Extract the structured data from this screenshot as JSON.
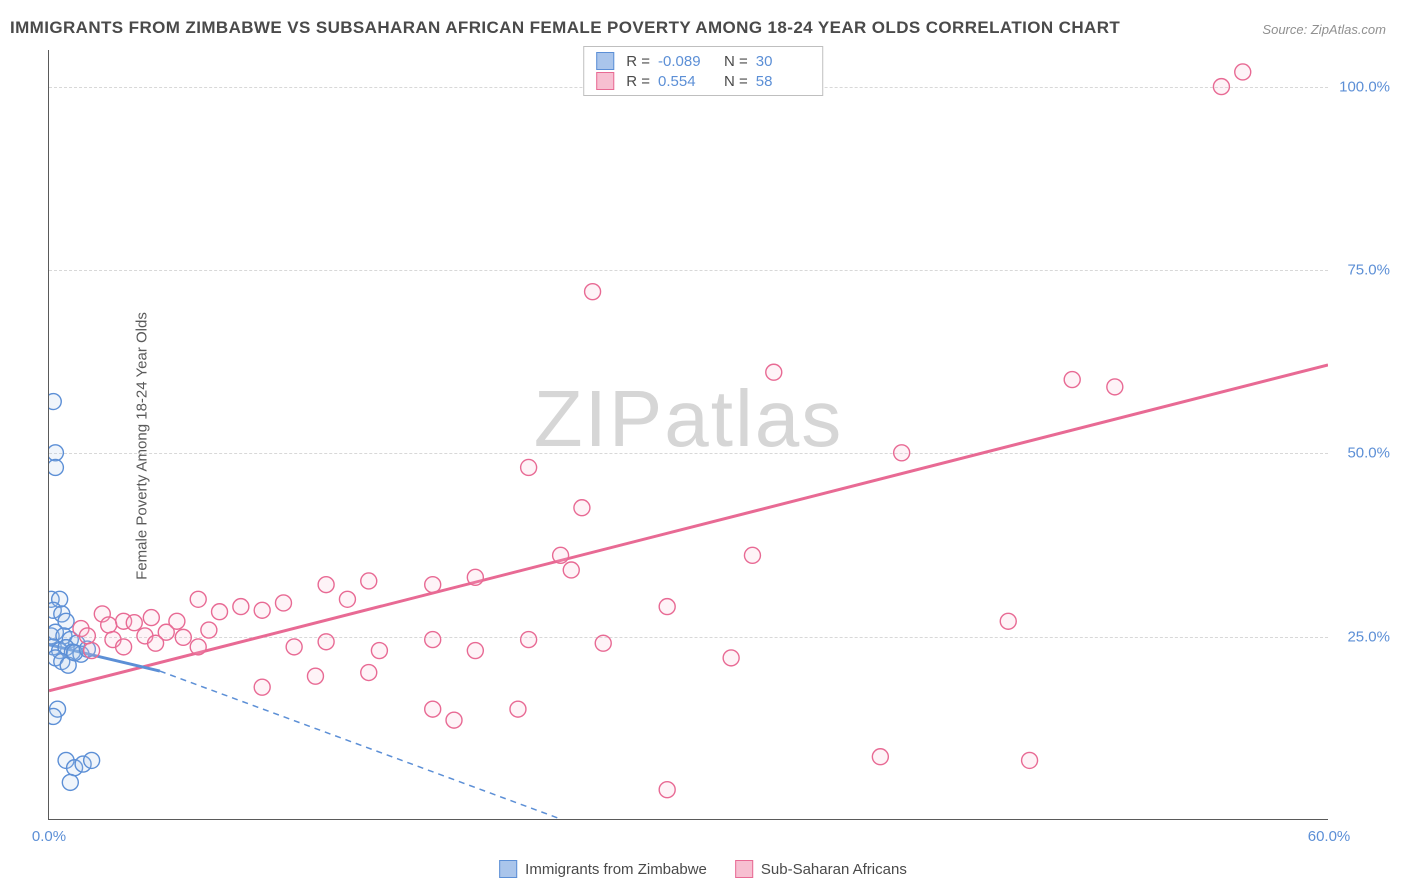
{
  "title": "IMMIGRANTS FROM ZIMBABWE VS SUBSAHARAN AFRICAN FEMALE POVERTY AMONG 18-24 YEAR OLDS CORRELATION CHART",
  "source_label": "Source:",
  "source_value": "ZipAtlas.com",
  "y_axis_label": "Female Poverty Among 18-24 Year Olds",
  "watermark_bold": "ZIP",
  "watermark_light": "atlas",
  "chart": {
    "type": "scatter",
    "xlim": [
      0,
      60
    ],
    "ylim": [
      0,
      105
    ],
    "x_ticks": [
      {
        "v": 0,
        "label": "0.0%"
      },
      {
        "v": 60,
        "label": "60.0%"
      }
    ],
    "y_ticks": [
      {
        "v": 25,
        "label": "25.0%"
      },
      {
        "v": 50,
        "label": "50.0%"
      },
      {
        "v": 75,
        "label": "75.0%"
      },
      {
        "v": 100,
        "label": "100.0%"
      }
    ],
    "grid_color": "#d8d8d8",
    "background_color": "#ffffff",
    "axis_color": "#5a5a5a",
    "tick_label_color": "#5c8fd6",
    "marker_radius": 8,
    "marker_stroke_width": 1.4,
    "marker_fill_opacity": 0.18,
    "series": [
      {
        "name": "Immigrants from Zimbabwe",
        "color_stroke": "#5c8fd6",
        "color_fill": "#aac5eb",
        "R": "-0.089",
        "N": "30",
        "trend_solid": {
          "x1": 0,
          "y1": 23.8,
          "x2": 5.2,
          "y2": 20.2
        },
        "trend_dashed": {
          "x1": 5.2,
          "y1": 20.2,
          "x2": 24,
          "y2": 0
        },
        "points": [
          [
            0.2,
            57
          ],
          [
            0.3,
            50
          ],
          [
            0.3,
            48
          ],
          [
            0.1,
            30
          ],
          [
            0.5,
            30
          ],
          [
            0.2,
            28.5
          ],
          [
            0.6,
            28
          ],
          [
            0.8,
            27
          ],
          [
            0.1,
            25
          ],
          [
            0.3,
            25.5
          ],
          [
            0.7,
            25
          ],
          [
            1.0,
            24.5
          ],
          [
            1.3,
            24
          ],
          [
            0.2,
            23.5
          ],
          [
            0.5,
            23
          ],
          [
            0.8,
            23.4
          ],
          [
            1.1,
            22.8
          ],
          [
            1.5,
            22.5
          ],
          [
            0.3,
            22
          ],
          [
            0.6,
            21.5
          ],
          [
            0.9,
            21
          ],
          [
            1.2,
            22.7
          ],
          [
            1.8,
            23.2
          ],
          [
            0.4,
            15
          ],
          [
            0.2,
            14
          ],
          [
            0.8,
            8
          ],
          [
            1.2,
            7
          ],
          [
            1.6,
            7.5
          ],
          [
            2.0,
            8
          ],
          [
            1.0,
            5
          ]
        ]
      },
      {
        "name": "Sub-Saharan Africans",
        "color_stroke": "#e86a94",
        "color_fill": "#f7bfd1",
        "R": "0.554",
        "N": "58",
        "trend_solid": {
          "x1": 0,
          "y1": 17.5,
          "x2": 60,
          "y2": 62
        },
        "trend_dashed": null,
        "points": [
          [
            56,
            102
          ],
          [
            55,
            100
          ],
          [
            25.5,
            72
          ],
          [
            34,
            61
          ],
          [
            48,
            60
          ],
          [
            50,
            59
          ],
          [
            40,
            50
          ],
          [
            22.5,
            48
          ],
          [
            25,
            42.5
          ],
          [
            24,
            36
          ],
          [
            24.5,
            34
          ],
          [
            33,
            36
          ],
          [
            13,
            32
          ],
          [
            15,
            32.5
          ],
          [
            18,
            32
          ],
          [
            20,
            33
          ],
          [
            7,
            30
          ],
          [
            9,
            29
          ],
          [
            11,
            29.5
          ],
          [
            14,
            30
          ],
          [
            2.5,
            28
          ],
          [
            3.5,
            27
          ],
          [
            4.8,
            27.5
          ],
          [
            6,
            27
          ],
          [
            8,
            28.3
          ],
          [
            10,
            28.5
          ],
          [
            1.5,
            26
          ],
          [
            2.8,
            26.5
          ],
          [
            4,
            26.8
          ],
          [
            5.5,
            25.5
          ],
          [
            7.5,
            25.8
          ],
          [
            1.8,
            25
          ],
          [
            3,
            24.5
          ],
          [
            4.5,
            25
          ],
          [
            6.3,
            24.8
          ],
          [
            2,
            23
          ],
          [
            3.5,
            23.5
          ],
          [
            5,
            24
          ],
          [
            7,
            23.5
          ],
          [
            11.5,
            23.5
          ],
          [
            13,
            24.2
          ],
          [
            15.5,
            23
          ],
          [
            18,
            24.5
          ],
          [
            20,
            23
          ],
          [
            22.5,
            24.5
          ],
          [
            26,
            24
          ],
          [
            29,
            29
          ],
          [
            32,
            22
          ],
          [
            10,
            18
          ],
          [
            12.5,
            19.5
          ],
          [
            15,
            20
          ],
          [
            18,
            15
          ],
          [
            19,
            13.5
          ],
          [
            22,
            15
          ],
          [
            29,
            4
          ],
          [
            39,
            8.5
          ],
          [
            46,
            8
          ],
          [
            45,
            27
          ]
        ]
      }
    ]
  },
  "legend_top": {
    "r_label": "R =",
    "n_label": "N ="
  },
  "legend_bottom": {
    "item1": "Immigrants from Zimbabwe",
    "item2": "Sub-Saharan Africans"
  }
}
